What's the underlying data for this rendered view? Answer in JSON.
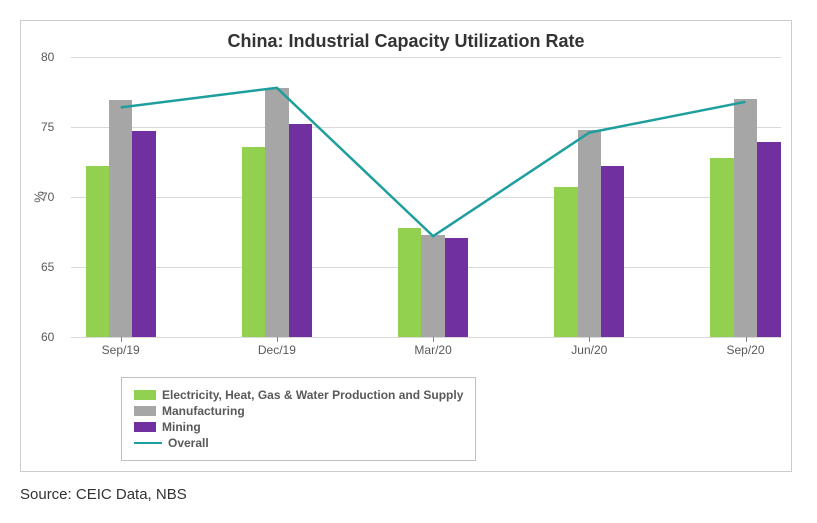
{
  "chart": {
    "type": "bar+line",
    "title": "China: Industrial Capacity Utilization Rate",
    "title_fontsize": 18,
    "title_color": "#333333",
    "background_color": "#ffffff",
    "border_color": "#cccccc",
    "ylabel": "%",
    "ylabel_fontsize": 13,
    "ylim": [
      60,
      80
    ],
    "ytick_step": 5,
    "yticks": [
      60,
      65,
      70,
      75,
      80
    ],
    "grid_color": "#d9d9d9",
    "tick_label_color": "#595959",
    "tick_label_fontsize": 12,
    "categories": [
      "Sep/19",
      "Dec/19",
      "Mar/20",
      "Jun/20",
      "Sep/20"
    ],
    "bar_width": 0.06,
    "group_spacing": 0.22,
    "series_bars": [
      {
        "name": "Electricity, Heat, Gas & Water Production and Supply",
        "color": "#92d050",
        "values": [
          72.2,
          73.6,
          67.8,
          70.7,
          72.8
        ]
      },
      {
        "name": "Manufacturing",
        "color": "#a6a6a6",
        "values": [
          76.9,
          77.8,
          67.3,
          74.8,
          77.0
        ]
      },
      {
        "name": "Mining",
        "color": "#7030a0",
        "values": [
          74.7,
          75.2,
          67.1,
          72.2,
          73.9
        ]
      }
    ],
    "series_line": {
      "name": "Overall",
      "color": "#1f9e9e",
      "line_width": 2.5,
      "values": [
        76.4,
        77.8,
        67.2,
        74.6,
        76.8
      ]
    },
    "legend": {
      "position": "bottom-left-inset",
      "border_color": "#bfbfbf",
      "label_fontsize": 12,
      "label_color": "#595959",
      "items": [
        {
          "type": "bar",
          "label": "Electricity, Heat, Gas & Water Production and Supply",
          "color": "#92d050"
        },
        {
          "type": "bar",
          "label": "Manufacturing",
          "color": "#a6a6a6"
        },
        {
          "type": "bar",
          "label": "Mining",
          "color": "#7030a0"
        },
        {
          "type": "line",
          "label": "Overall",
          "color": "#1f9e9e"
        }
      ]
    }
  },
  "source_text": "Source: CEIC Data, NBS"
}
